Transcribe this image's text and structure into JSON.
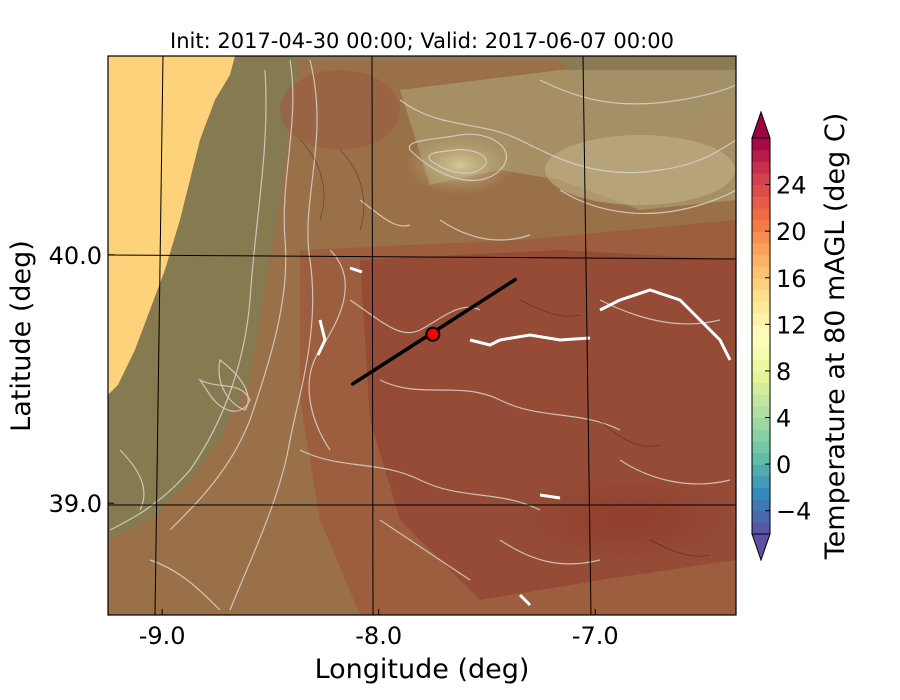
{
  "title": "Init: 2017-04-30 00:00; Valid: 2017-06-07 00:00",
  "map": {
    "x_axis_label": "Longitude (deg)",
    "y_axis_label": "Latitude (deg)",
    "x_range": [
      -9.25,
      -6.35
    ],
    "y_range": [
      38.55,
      40.8
    ],
    "x_ticks": [
      {
        "value": -9.0,
        "label": "-9.0"
      },
      {
        "value": -8.0,
        "label": "-8.0"
      },
      {
        "value": -7.0,
        "label": "-7.0"
      }
    ],
    "y_ticks": [
      {
        "value": 40.0,
        "label": "40.0"
      },
      {
        "value": 39.0,
        "label": "39.0"
      }
    ],
    "transect": {
      "lon_start": -8.12,
      "lat_start": 39.48,
      "lon_end": -7.37,
      "lat_end": 39.9
    },
    "marker": {
      "lon": -7.75,
      "lat": 39.68,
      "color": "#ff0000"
    }
  },
  "colorbar": {
    "label": "Temperature at 80 mAGL (deg C)",
    "range": [
      -6,
      28
    ],
    "extend": "both",
    "ticks": [
      {
        "value": -4,
        "label": "−4"
      },
      {
        "value": 0,
        "label": "0"
      },
      {
        "value": 4,
        "label": "4"
      },
      {
        "value": 8,
        "label": "8"
      },
      {
        "value": 12,
        "label": "12"
      },
      {
        "value": 16,
        "label": "16"
      },
      {
        "value": 20,
        "label": "20"
      },
      {
        "value": 24,
        "label": "24"
      }
    ],
    "colormap": "Spectral_r"
  }
}
